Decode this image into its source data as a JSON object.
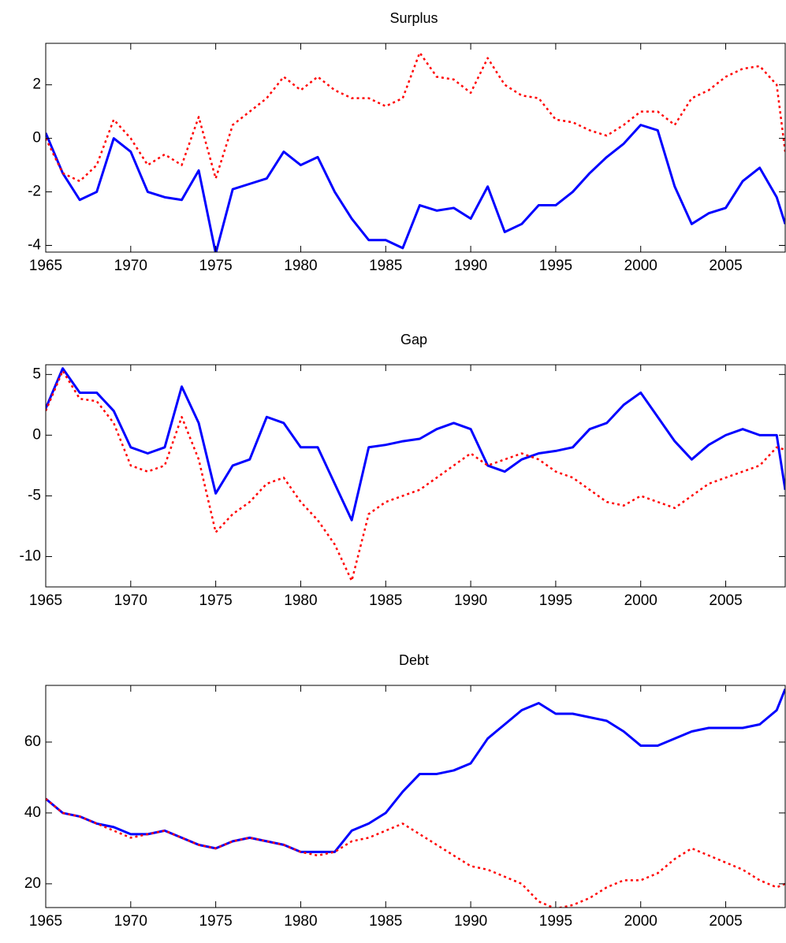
{
  "chart_data": [
    {
      "type": "line",
      "title": "Surplus",
      "x": [
        1965,
        1966,
        1967,
        1968,
        1969,
        1970,
        1971,
        1972,
        1973,
        1974,
        1975,
        1976,
        1977,
        1978,
        1979,
        1980,
        1981,
        1982,
        1983,
        1984,
        1985,
        1986,
        1987,
        1988,
        1989,
        1990,
        1991,
        1992,
        1993,
        1994,
        1995,
        1996,
        1997,
        1998,
        1999,
        2000,
        2001,
        2002,
        2003,
        2004,
        2005,
        2006,
        2007,
        2008,
        2008.5
      ],
      "series": [
        {
          "color": "#0000ff",
          "style": "solid",
          "values": [
            0.2,
            -1.3,
            -2.3,
            -2.0,
            0.0,
            -0.5,
            -2.0,
            -2.2,
            -2.3,
            -1.2,
            -4.3,
            -1.9,
            -1.7,
            -1.5,
            -0.5,
            -1.0,
            -0.7,
            -2.0,
            -3.0,
            -3.8,
            -3.8,
            -4.1,
            -2.5,
            -2.7,
            -2.6,
            -3.0,
            -1.8,
            -3.5,
            -3.2,
            -2.5,
            -2.5,
            -2.0,
            -1.3,
            -0.7,
            -0.2,
            0.5,
            0.3,
            -1.8,
            -3.2,
            -2.8,
            -2.6,
            -1.6,
            -1.1,
            -2.2,
            -3.2
          ]
        },
        {
          "color": "#ff0000",
          "style": "dotted",
          "values": [
            0.0,
            -1.3,
            -1.6,
            -1.0,
            0.7,
            0.0,
            -1.0,
            -0.6,
            -1.0,
            0.8,
            -1.5,
            0.5,
            1.0,
            1.5,
            2.3,
            1.8,
            2.3,
            1.8,
            1.5,
            1.5,
            1.2,
            1.5,
            3.2,
            2.3,
            2.2,
            1.7,
            3.0,
            2.0,
            1.6,
            1.5,
            0.7,
            0.6,
            0.3,
            0.1,
            0.5,
            1.0,
            1.0,
            0.5,
            1.5,
            1.8,
            2.3,
            2.6,
            2.7,
            2.0,
            -0.5
          ]
        }
      ],
      "xlim": [
        1965,
        2008.5
      ],
      "xticks": [
        1965,
        1970,
        1975,
        1980,
        1985,
        1990,
        1995,
        2000,
        2005
      ],
      "ylim": [
        -4.25,
        3.55
      ],
      "yticks": [
        -4,
        -2,
        0,
        2
      ]
    },
    {
      "type": "line",
      "title": "Gap",
      "x": [
        1965,
        1966,
        1967,
        1968,
        1969,
        1970,
        1971,
        1972,
        1973,
        1974,
        1975,
        1976,
        1977,
        1978,
        1979,
        1980,
        1981,
        1982,
        1983,
        1984,
        1985,
        1986,
        1987,
        1988,
        1989,
        1990,
        1991,
        1992,
        1993,
        1994,
        1995,
        1996,
        1997,
        1998,
        1999,
        2000,
        2001,
        2002,
        2003,
        2004,
        2005,
        2006,
        2007,
        2008,
        2008.5
      ],
      "series": [
        {
          "color": "#0000ff",
          "style": "solid",
          "values": [
            2.2,
            5.5,
            3.5,
            3.5,
            2.0,
            -1.0,
            -1.5,
            -1.0,
            4.0,
            1.0,
            -4.8,
            -2.5,
            -2.0,
            1.5,
            1.0,
            -1.0,
            -1.0,
            -4.0,
            -7.0,
            -1.0,
            -0.8,
            -0.5,
            -0.3,
            0.5,
            1.0,
            0.5,
            -2.5,
            -3.0,
            -2.0,
            -1.5,
            -1.3,
            -1.0,
            0.5,
            1.0,
            2.5,
            3.5,
            1.5,
            -0.5,
            -2.0,
            -0.8,
            0.0,
            0.5,
            0.0,
            0.0,
            -4.5
          ]
        },
        {
          "color": "#ff0000",
          "style": "dotted",
          "values": [
            2.0,
            5.3,
            3.0,
            2.8,
            1.0,
            -2.5,
            -3.0,
            -2.5,
            1.5,
            -2.0,
            -8.0,
            -6.5,
            -5.5,
            -4.0,
            -3.5,
            -5.5,
            -7.0,
            -9.0,
            -12.0,
            -6.5,
            -5.5,
            -5.0,
            -4.5,
            -3.5,
            -2.5,
            -1.5,
            -2.5,
            -2.0,
            -1.5,
            -2.0,
            -3.0,
            -3.5,
            -4.5,
            -5.5,
            -5.8,
            -5.0,
            -5.5,
            -6.0,
            -5.0,
            -4.0,
            -3.5,
            -3.0,
            -2.5,
            -1.0,
            -1.2
          ]
        }
      ],
      "xlim": [
        1965,
        2008.5
      ],
      "xticks": [
        1965,
        1970,
        1975,
        1980,
        1985,
        1990,
        1995,
        2000,
        2005
      ],
      "ylim": [
        -12.5,
        5.8
      ],
      "yticks": [
        -10,
        -5,
        0,
        5
      ]
    },
    {
      "type": "line",
      "title": "Debt",
      "x": [
        1965,
        1966,
        1967,
        1968,
        1969,
        1970,
        1971,
        1972,
        1973,
        1974,
        1975,
        1976,
        1977,
        1978,
        1979,
        1980,
        1981,
        1982,
        1983,
        1984,
        1985,
        1986,
        1987,
        1988,
        1989,
        1990,
        1991,
        1992,
        1993,
        1994,
        1995,
        1996,
        1997,
        1998,
        1999,
        2000,
        2001,
        2002,
        2003,
        2004,
        2005,
        2006,
        2007,
        2008,
        2008.5
      ],
      "series": [
        {
          "color": "#0000ff",
          "style": "solid",
          "values": [
            44,
            40,
            39,
            37,
            36,
            34,
            34,
            35,
            33,
            31,
            30,
            32,
            33,
            32,
            31,
            29,
            29,
            29,
            35,
            37,
            40,
            46,
            51,
            51,
            52,
            54,
            61,
            65,
            69,
            71,
            68,
            68,
            67,
            66,
            63,
            59,
            59,
            61,
            63,
            64,
            64,
            64,
            65,
            69,
            75
          ]
        },
        {
          "color": "#ff0000",
          "style": "dotted",
          "values": [
            44,
            40,
            39,
            37,
            35,
            33,
            34,
            35,
            33,
            31,
            30,
            32,
            33,
            32,
            31,
            29,
            28,
            29,
            32,
            33,
            35,
            37,
            34,
            31,
            28,
            25,
            24,
            22,
            20,
            15,
            13,
            14,
            16,
            19,
            21,
            21,
            23,
            27,
            30,
            28,
            26,
            24,
            21,
            19,
            20
          ]
        }
      ],
      "xlim": [
        1965,
        2008.5
      ],
      "xticks": [
        1965,
        1970,
        1975,
        1980,
        1985,
        1990,
        1995,
        2000,
        2005
      ],
      "ylim": [
        13.3,
        76
      ],
      "yticks": [
        20,
        40,
        60
      ]
    }
  ]
}
